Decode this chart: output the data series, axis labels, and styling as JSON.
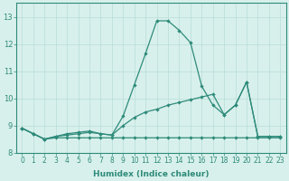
{
  "xlabel": "Humidex (Indice chaleur)",
  "x": [
    0,
    1,
    2,
    3,
    4,
    5,
    6,
    7,
    8,
    9,
    10,
    11,
    12,
    13,
    14,
    15,
    16,
    17,
    18,
    19,
    20,
    21,
    22,
    23
  ],
  "line1": [
    8.9,
    8.7,
    8.5,
    8.55,
    8.55,
    8.55,
    8.55,
    8.55,
    8.55,
    8.55,
    8.55,
    8.55,
    8.55,
    8.55,
    8.55,
    8.55,
    8.55,
    8.55,
    8.55,
    8.55,
    8.55,
    8.55,
    8.55,
    8.55
  ],
  "line2": [
    8.9,
    8.7,
    8.5,
    8.6,
    8.7,
    8.75,
    8.8,
    8.7,
    8.65,
    9.35,
    10.5,
    11.65,
    12.85,
    12.85,
    12.5,
    12.05,
    10.45,
    9.75,
    9.4,
    9.75,
    10.6,
    8.6,
    8.6,
    8.6
  ],
  "line3": [
    8.9,
    8.7,
    8.5,
    8.6,
    8.65,
    8.7,
    8.75,
    8.7,
    8.65,
    9.0,
    9.3,
    9.5,
    9.6,
    9.75,
    9.85,
    9.95,
    10.05,
    10.15,
    9.4,
    9.75,
    10.6,
    8.6,
    8.6,
    8.6
  ],
  "line_color": "#2e8b7a",
  "bg_color": "#d8f0ec",
  "grid_color": "#b8ddd8",
  "ylim": [
    8.0,
    13.5
  ],
  "yticks": [
    8,
    9,
    10,
    11,
    12,
    13
  ],
  "xlim": [
    -0.5,
    23.5
  ],
  "linewidth": 0.9,
  "markersize": 2.2,
  "xlabel_fontsize": 6.5,
  "tick_fontsize": 5.5
}
